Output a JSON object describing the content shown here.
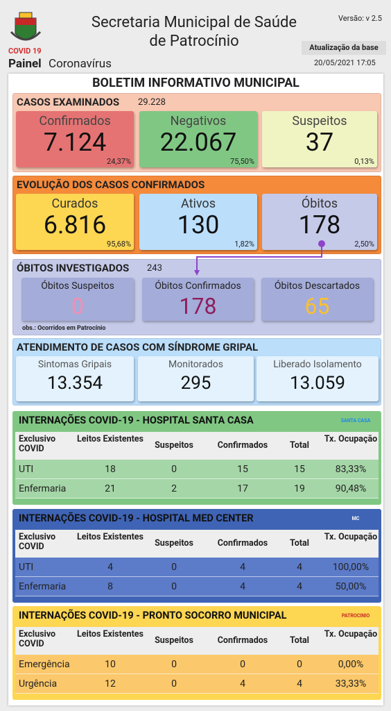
{
  "header": {
    "title_lines": [
      "Secretaria Municipal de Saúde",
      "de Patrocínio"
    ],
    "version": "Versão: v 2.5",
    "update_label": "Atualização da base",
    "update_date": "20/05/2021 17:05",
    "covid": "COVID 19",
    "panel_bold": "Painel",
    "panel_rest": "Coronavírus"
  },
  "bulletin_title": "BOLETIM INFORMATIVO MUNICIPAL",
  "exams": {
    "title": "CASOS EXAMINADOS",
    "total": "29.228",
    "cards": [
      {
        "label": "Confirmados",
        "value": "7.124",
        "pct": "24,37%"
      },
      {
        "label": "Negativos",
        "value": "22.067",
        "pct": "75,50%"
      },
      {
        "label": "Suspeitos",
        "value": "37",
        "pct": "0,13%"
      }
    ]
  },
  "evolution": {
    "title": "EVOLUÇÃO DOS CASOS CONFIRMADOS",
    "cards": [
      {
        "label": "Curados",
        "value": "6.816",
        "pct": "95,68%"
      },
      {
        "label": "Ativos",
        "value": "130",
        "pct": "1,82%"
      },
      {
        "label": "Óbitos",
        "value": "178",
        "pct": "2,50%"
      }
    ]
  },
  "deaths": {
    "title": "ÓBITOS INVESTIGADOS",
    "total": "243",
    "cards": [
      {
        "label": "Óbitos Suspeitos",
        "value": "0"
      },
      {
        "label": "Óbitos Confirmados",
        "value": "178"
      },
      {
        "label": "Óbitos Descartados",
        "value": "65"
      }
    ],
    "note": "obs.: Ocorridos em Patrocínio"
  },
  "syndrome": {
    "title": "ATENDIMENTO DE CASOS COM SÍNDROME GRIPAL",
    "cards": [
      {
        "label": "Sintomas Gripais",
        "value": "13.354"
      },
      {
        "label": "Monitorados",
        "value": "295"
      },
      {
        "label": "Liberado Isolamento",
        "value": "13.059"
      }
    ]
  },
  "hospitals": [
    {
      "title": "INTERNAÇÕES COVID-19 - HOSPITAL SANTA CASA",
      "logo_text": "SANTA CASA",
      "headers": [
        "Exclusivo COVID",
        "Leitos Existentes",
        "Suspeitos",
        "Confirmados",
        "Total",
        "Tx. Ocupação"
      ],
      "rows": [
        [
          "UTI",
          "18",
          "0",
          "15",
          "15",
          "83,33%"
        ],
        [
          "Enfermaria",
          "21",
          "2",
          "17",
          "19",
          "90,48%"
        ]
      ]
    },
    {
      "title": "INTERNAÇÕES COVID-19 - HOSPITAL MED CENTER",
      "logo_text": "MC",
      "headers": [
        "Exclusivo COVID",
        "Leitos Existentes",
        "Suspeitos",
        "Confirmados",
        "Total",
        "Tx. Ocupação"
      ],
      "rows": [
        [
          "UTI",
          "4",
          "0",
          "4",
          "4",
          "100,00%"
        ],
        [
          "Enfermaria",
          "8",
          "0",
          "4",
          "4",
          "50,00%"
        ]
      ]
    },
    {
      "title": "INTERNAÇÕES COVID-19 - PRONTO SOCORRO MUNICIPAL",
      "logo_text": "PATROCINIO",
      "headers": [
        "Exclusivo COVID",
        "Leitos Existentes",
        "Suspeitos",
        "Confirmados",
        "Total",
        "Tx. Ocupação"
      ],
      "rows": [
        [
          "Emergência",
          "10",
          "0",
          "0",
          "0",
          "0,00%"
        ],
        [
          "Urgência",
          "12",
          "0",
          "4",
          "4",
          "33,33%"
        ]
      ]
    }
  ]
}
